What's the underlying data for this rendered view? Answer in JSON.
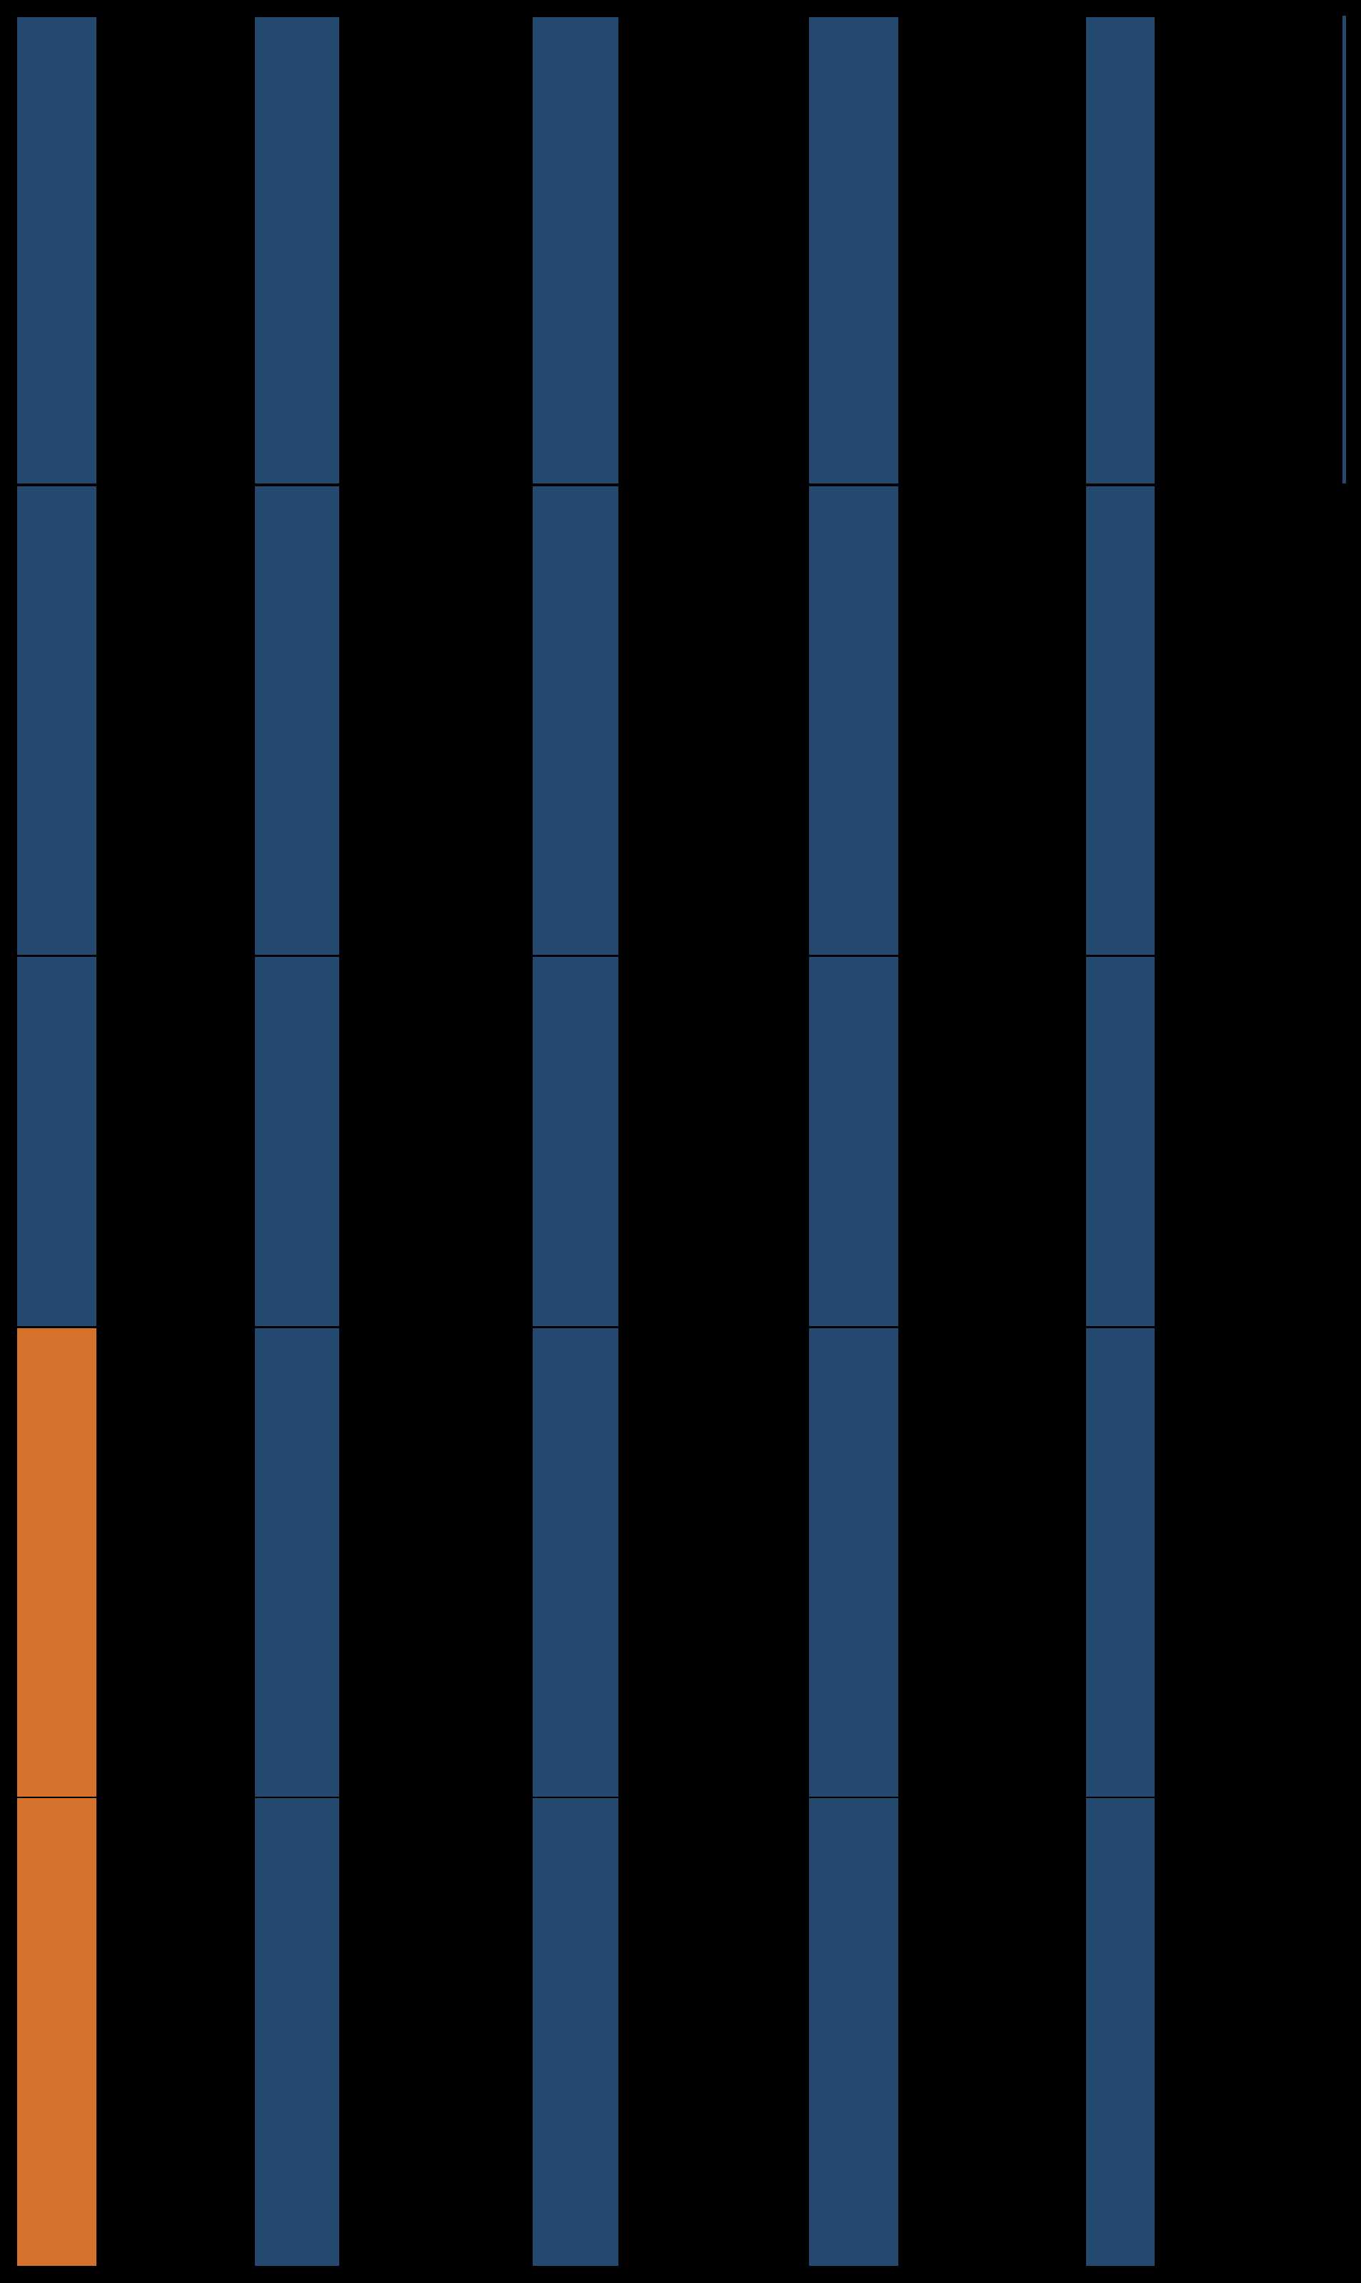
{
  "columns": [
    {
      "cells": [
        "#234a6e",
        "#234a6e",
        "#234a6e",
        "#d4712a",
        "#d4712a"
      ]
    },
    {
      "cells": [
        "#234a6e",
        "#234a6e",
        "#234a6e",
        "#234a6e",
        "#234a6e"
      ]
    },
    {
      "cells": [
        "#234a6e",
        "#234a6e",
        "#234a6e",
        "#234a6e",
        "#234a6e"
      ]
    },
    {
      "cells": [
        "#234a6e",
        "#234a6e",
        "#234a6e",
        "#234a6e",
        "#234a6e"
      ]
    },
    {
      "cells": [
        "#234a6e",
        "#234a6e",
        "#234a6e",
        "#234a6e",
        "#234a6e"
      ]
    }
  ]
}
